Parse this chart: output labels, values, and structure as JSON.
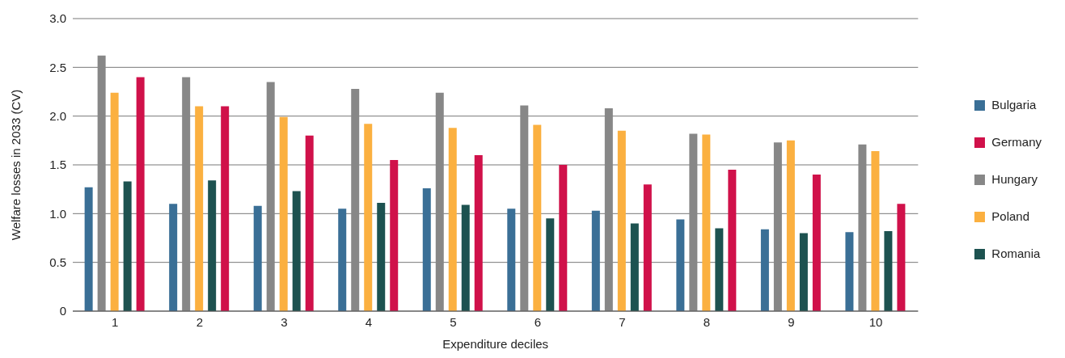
{
  "chart_data": {
    "type": "bar",
    "xlabel": "Expenditure deciles",
    "ylabel": "Welfare losses in 2033 (CV)",
    "categories": [
      "1",
      "2",
      "3",
      "4",
      "5",
      "6",
      "7",
      "8",
      "9",
      "10"
    ],
    "series": [
      {
        "name": "Bulgaria",
        "color": "#3a6f96",
        "values": [
          1.27,
          1.1,
          1.08,
          1.05,
          1.26,
          1.05,
          1.03,
          0.94,
          0.84,
          0.81
        ]
      },
      {
        "name": "Hungary",
        "color": "#878787",
        "values": [
          2.62,
          2.4,
          2.35,
          2.28,
          2.24,
          2.11,
          2.08,
          1.82,
          1.73,
          1.71
        ]
      },
      {
        "name": "Poland",
        "color": "#fbb040",
        "values": [
          2.24,
          2.1,
          1.99,
          1.92,
          1.88,
          1.91,
          1.85,
          1.81,
          1.75,
          1.64
        ]
      },
      {
        "name": "Romania",
        "color": "#1d5250",
        "values": [
          1.33,
          1.34,
          1.23,
          1.11,
          1.09,
          0.95,
          0.9,
          0.85,
          0.8,
          0.82
        ]
      },
      {
        "name": "Germany",
        "color": "#d0114a",
        "values": [
          2.4,
          2.1,
          1.8,
          1.55,
          1.6,
          1.5,
          1.3,
          1.45,
          1.4,
          1.1
        ]
      }
    ],
    "ylim": [
      0,
      3
    ],
    "yticks": [
      0,
      0.5,
      {
        "value": 1,
        "label": "1.0"
      },
      1.5,
      {
        "value": 2,
        "label": "2.0"
      },
      2.5,
      {
        "value": 3,
        "label": "3.0"
      }
    ],
    "grid": "y",
    "legend": "right"
  }
}
